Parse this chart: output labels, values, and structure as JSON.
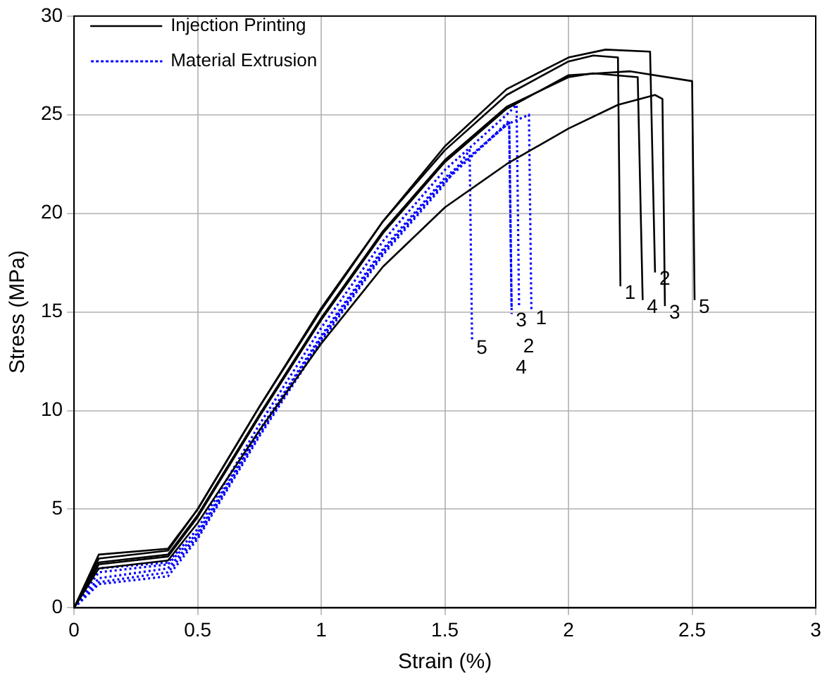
{
  "chart_data": {
    "type": "line",
    "xlabel": "Strain (%)",
    "ylabel": "Stress (MPa)",
    "xlim": [
      0,
      3
    ],
    "ylim": [
      0,
      30
    ],
    "xticks": [
      0,
      0.5,
      1,
      1.5,
      2,
      2.5,
      3
    ],
    "yticks": [
      0,
      5,
      10,
      15,
      20,
      25,
      30
    ],
    "grid": true,
    "legend": "top left",
    "marker": "none",
    "series": [
      {
        "name": "Injection Printing",
        "color": "#000000",
        "line_style": "solid",
        "x": [
          0,
          0.1,
          0.38,
          0.5,
          0.75,
          1,
          1.25,
          1.5,
          1.75,
          2,
          2.1,
          2.2,
          2.21
        ],
        "values": [
          0,
          2.5,
          2.9,
          5,
          10.2,
          15.2,
          19.6,
          23.2,
          26,
          27.7,
          28,
          27.9,
          16.3
        ]
      },
      {
        "color": "#000000",
        "line_style": "solid",
        "x": [
          0,
          0.1,
          0.38,
          0.5,
          0.75,
          1,
          1.25,
          1.5,
          1.75,
          2,
          2.15,
          2.33,
          2.35
        ],
        "values": [
          0,
          2.7,
          3,
          5,
          10.2,
          15.1,
          19.6,
          23.4,
          26.3,
          27.9,
          28.3,
          28.2,
          17
        ]
      },
      {
        "color": "#000000",
        "line_style": "solid",
        "x": [
          0,
          0.1,
          0.38,
          0.5,
          0.75,
          1,
          1.25,
          1.5,
          1.75,
          2,
          2.2,
          2.35,
          2.38,
          2.39
        ],
        "values": [
          0,
          2,
          2.4,
          4.3,
          9,
          13.4,
          17.3,
          20.3,
          22.5,
          24.3,
          25.5,
          26,
          25.8,
          15.3
        ]
      },
      {
        "color": "#000000",
        "line_style": "solid",
        "x": [
          0,
          0.1,
          0.38,
          0.5,
          0.75,
          1,
          1.25,
          1.5,
          1.75,
          2,
          2.1,
          2.28,
          2.3
        ],
        "values": [
          0,
          2.3,
          2.7,
          4.7,
          9.8,
          14.7,
          19.1,
          22.7,
          25.4,
          26.9,
          27.1,
          26.9,
          15.6
        ]
      },
      {
        "color": "#000000",
        "line_style": "solid",
        "x": [
          0,
          0.1,
          0.38,
          0.5,
          0.75,
          1,
          1.25,
          1.5,
          1.75,
          2,
          2.25,
          2.5,
          2.51
        ],
        "values": [
          0,
          2.2,
          2.6,
          4.6,
          9.7,
          14.6,
          19,
          22.6,
          25.3,
          27,
          27.2,
          26.7,
          15.6
        ]
      },
      {
        "name": "Material Extrusion",
        "color": "#0000ff",
        "line_style": "dotted",
        "x": [
          0,
          0.1,
          0.38,
          0.5,
          0.75,
          1,
          1.25,
          1.5,
          1.75,
          1.84,
          1.85
        ],
        "values": [
          0,
          1.8,
          2.2,
          3.8,
          9,
          13.8,
          18.2,
          21.8,
          24.5,
          25,
          15
        ]
      },
      {
        "color": "#0000ff",
        "line_style": "dotted",
        "x": [
          0,
          0.1,
          0.38,
          0.5,
          0.75,
          1,
          1.25,
          1.5,
          1.75,
          1.79,
          1.8
        ],
        "values": [
          0,
          2,
          2.3,
          4,
          9.3,
          14.2,
          18.6,
          22.2,
          25,
          25.5,
          15.3
        ]
      },
      {
        "color": "#0000ff",
        "line_style": "dotted",
        "x": [
          0,
          0.1,
          0.38,
          0.5,
          0.75,
          1,
          1.25,
          1.5,
          1.76,
          1.77
        ],
        "values": [
          0,
          1.5,
          2,
          3.7,
          8.9,
          13.7,
          18.1,
          21.7,
          24.6,
          14.9
        ]
      },
      {
        "color": "#0000ff",
        "line_style": "dotted",
        "x": [
          0,
          0.1,
          0.38,
          0.5,
          0.75,
          1,
          1.25,
          1.5,
          1.76,
          1.77
        ],
        "values": [
          0,
          1.3,
          1.8,
          3.6,
          8.8,
          13.6,
          18,
          21.6,
          24.7,
          15.1
        ]
      },
      {
        "color": "#0000ff",
        "line_style": "dotted",
        "x": [
          0,
          0.1,
          0.38,
          0.5,
          0.75,
          1,
          1.25,
          1.5,
          1.6,
          1.61
        ],
        "values": [
          0,
          1.2,
          1.6,
          3.5,
          8.7,
          13.5,
          17.9,
          21.5,
          23.2,
          13.5
        ]
      }
    ],
    "annotations": [
      {
        "text": "1",
        "x": 2.21,
        "y": 16.3
      },
      {
        "text": "2",
        "x": 2.35,
        "y": 17
      },
      {
        "text": "3",
        "x": 2.39,
        "y": 15.3
      },
      {
        "text": "4",
        "x": 2.3,
        "y": 15.6
      },
      {
        "text": "5",
        "x": 2.51,
        "y": 15.6
      },
      {
        "text": "1",
        "x": 1.85,
        "y": 15
      },
      {
        "text": "2",
        "x": 1.8,
        "y": 15.3
      },
      {
        "text": "3",
        "x": 1.77,
        "y": 14.9
      },
      {
        "text": "4",
        "x": 1.77,
        "y": 15.1
      },
      {
        "text": "5",
        "x": 1.61,
        "y": 13.5
      }
    ]
  }
}
